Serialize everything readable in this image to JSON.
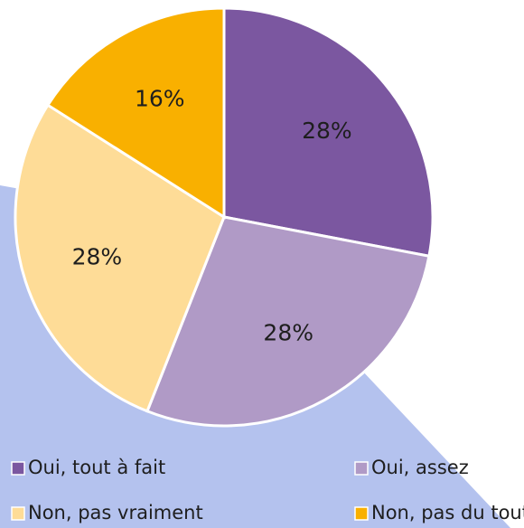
{
  "chart_data": {
    "type": "pie",
    "categories": [
      "Oui, tout à fait",
      "Oui, assez",
      "Non, pas vraiment",
      "Non, pas du tout"
    ],
    "values": [
      28,
      28,
      28,
      16
    ],
    "value_labels": [
      "28%",
      "28%",
      "28%",
      "16%"
    ],
    "colors": [
      "#7b57a0",
      "#b09ac6",
      "#fedc97",
      "#f9b000"
    ],
    "legend": "bottom"
  }
}
